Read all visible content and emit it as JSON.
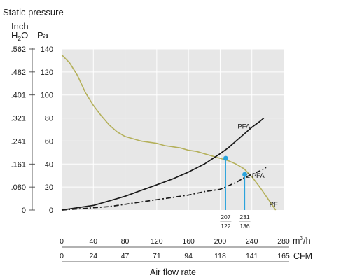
{
  "chart_data": {
    "type": "line",
    "title": "Static pressure",
    "y_units": {
      "inch_top": "Inch",
      "inch_bottom": "H",
      "inch_sub": "2",
      "inch_tail": "O",
      "pa": "Pa"
    },
    "y_pa_ticks": [
      "140",
      "120",
      "100",
      "80",
      "60",
      "40",
      "20",
      "0"
    ],
    "y_pa_values": [
      140,
      120,
      100,
      80,
      60,
      40,
      20,
      0
    ],
    "y_inch_ticks": [
      ".562",
      ".482",
      ".401",
      ".321",
      ".241",
      ".161",
      ".080",
      "0"
    ],
    "ylim": [
      0,
      140
    ],
    "xlim": [
      0,
      280
    ],
    "x_m3h_ticks": [
      "0",
      "40",
      "80",
      "120",
      "160",
      "200",
      "240",
      "280"
    ],
    "x_m3h_values": [
      0,
      40,
      80,
      120,
      160,
      200,
      240,
      280
    ],
    "x_cfm_ticks": [
      "0",
      "24",
      "47",
      "71",
      "94",
      "118",
      "141",
      "165"
    ],
    "x_unit_m3h": "m³/h",
    "x_unit_m3h_base": "m",
    "x_unit_m3h_sup": "3",
    "x_unit_m3h_tail": "/h",
    "x_unit_cfm": "CFM",
    "xlabel": "Air flow rate",
    "colors": {
      "plot_bg": "#e7e7e7",
      "grid": "#ffffff",
      "pf": "#b4b05a",
      "pfa": "#1a1a1a",
      "marker": "#29a3dc"
    },
    "series": [
      {
        "name": "PF",
        "style": "solid",
        "points": [
          [
            0,
            135
          ],
          [
            10,
            128
          ],
          [
            20,
            117
          ],
          [
            30,
            102
          ],
          [
            40,
            91
          ],
          [
            50,
            82
          ],
          [
            60,
            74
          ],
          [
            70,
            68
          ],
          [
            80,
            64
          ],
          [
            90,
            62
          ],
          [
            100,
            60
          ],
          [
            110,
            59
          ],
          [
            120,
            58
          ],
          [
            130,
            56
          ],
          [
            140,
            55
          ],
          [
            150,
            54
          ],
          [
            160,
            52
          ],
          [
            170,
            51
          ],
          [
            180,
            49
          ],
          [
            190,
            47
          ],
          [
            200,
            45
          ],
          [
            210,
            43
          ],
          [
            220,
            40
          ],
          [
            230,
            36
          ],
          [
            240,
            29
          ],
          [
            250,
            20
          ],
          [
            260,
            10
          ],
          [
            270,
            0
          ]
        ]
      },
      {
        "name": "PFA",
        "style": "solid",
        "points": [
          [
            0,
            0
          ],
          [
            20,
            2
          ],
          [
            40,
            4
          ],
          [
            60,
            8
          ],
          [
            80,
            12
          ],
          [
            100,
            17
          ],
          [
            120,
            22
          ],
          [
            140,
            27
          ],
          [
            160,
            33
          ],
          [
            180,
            40
          ],
          [
            200,
            49
          ],
          [
            210,
            54
          ],
          [
            220,
            60
          ],
          [
            230,
            66
          ],
          [
            240,
            72
          ],
          [
            250,
            77
          ],
          [
            255,
            80
          ]
        ]
      },
      {
        "name": "2 PFA",
        "style": "dash-dot",
        "points": [
          [
            0,
            0
          ],
          [
            20,
            1
          ],
          [
            40,
            2
          ],
          [
            60,
            3
          ],
          [
            80,
            5
          ],
          [
            100,
            7
          ],
          [
            120,
            9
          ],
          [
            140,
            11
          ],
          [
            160,
            13
          ],
          [
            180,
            16
          ],
          [
            200,
            18
          ],
          [
            210,
            21
          ],
          [
            220,
            24
          ],
          [
            230,
            28
          ],
          [
            240,
            31
          ],
          [
            250,
            34
          ],
          [
            258,
            37
          ]
        ]
      }
    ],
    "markers": [
      {
        "x": 207,
        "y": 45,
        "label_top": "207",
        "label_bottom": "122"
      },
      {
        "x": 231,
        "y": 31,
        "label_top": "231",
        "label_bottom": "136"
      }
    ]
  }
}
